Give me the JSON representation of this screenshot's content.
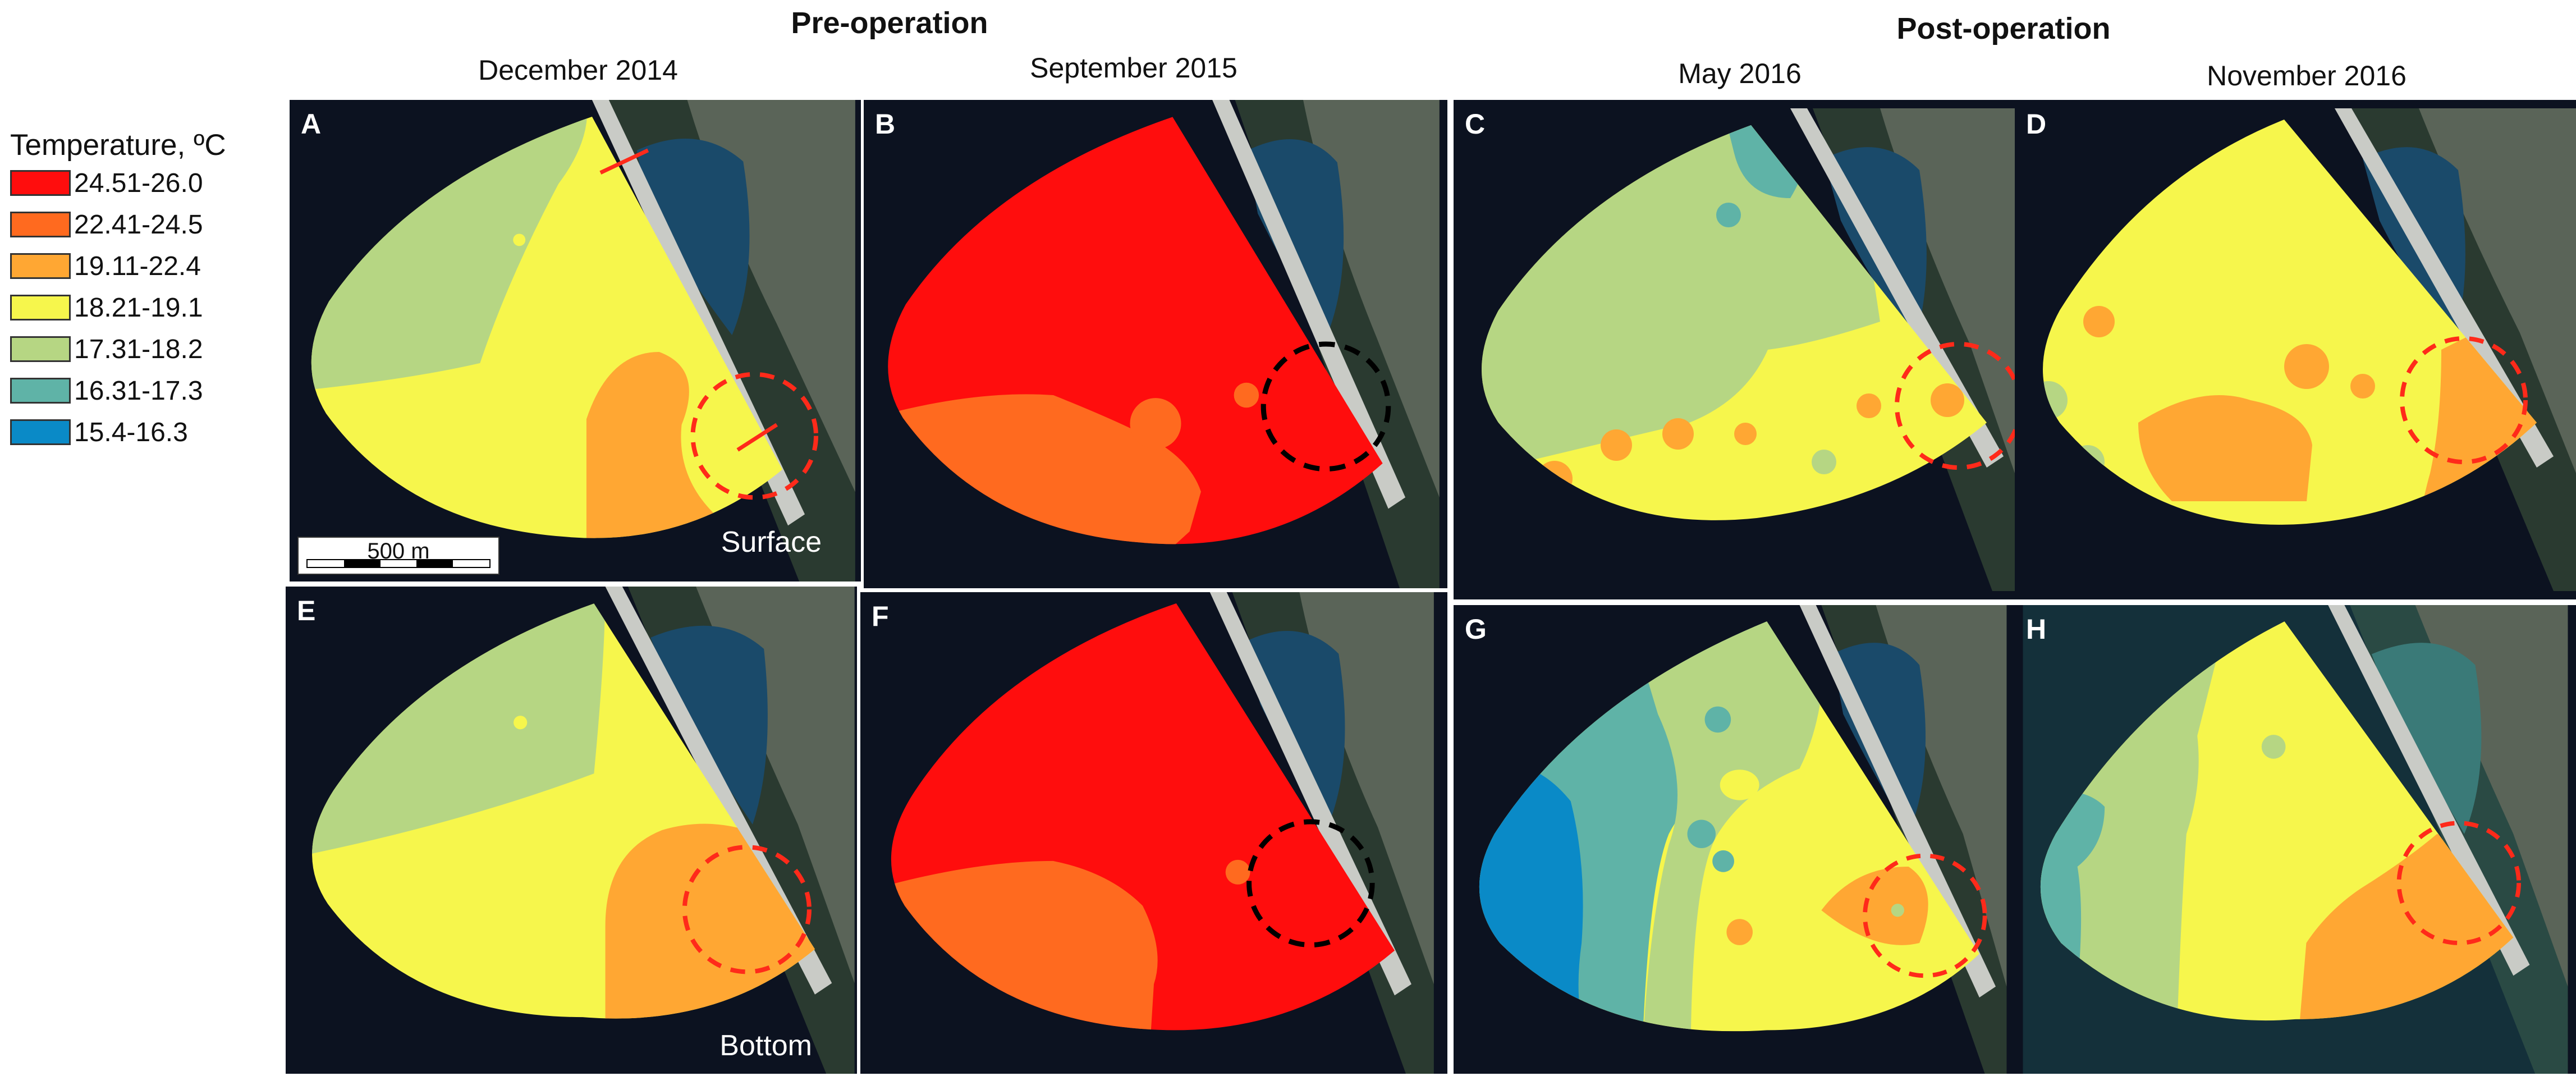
{
  "headers": {
    "pre_operation": "Pre-operation",
    "post_operation": "Post-operation",
    "dates": [
      "December 2014",
      "September 2015",
      "May 2016",
      "November 2016"
    ]
  },
  "legend": {
    "title": "Temperature, ºC",
    "items": [
      {
        "label": "24.51-26.0",
        "color": "#ff0d0d"
      },
      {
        "label": "22.41-24.5",
        "color": "#ff6a1f"
      },
      {
        "label": "19.11-22.4",
        "color": "#ffa733"
      },
      {
        "label": "18.21-19.1",
        "color": "#f6f64c"
      },
      {
        "label": "17.31-18.2",
        "color": "#b6d683"
      },
      {
        "label": "16.31-17.3",
        "color": "#5fb3a7"
      },
      {
        "label": "15.4-16.3",
        "color": "#0a8ac7"
      }
    ]
  },
  "panels": [
    {
      "letter": "A",
      "depth": "Surface",
      "scale": "500 m"
    },
    {
      "letter": "B"
    },
    {
      "letter": "C"
    },
    {
      "letter": "D"
    },
    {
      "letter": "E",
      "depth": "Bottom"
    },
    {
      "letter": "F"
    },
    {
      "letter": "G"
    },
    {
      "letter": "H"
    }
  ]
}
